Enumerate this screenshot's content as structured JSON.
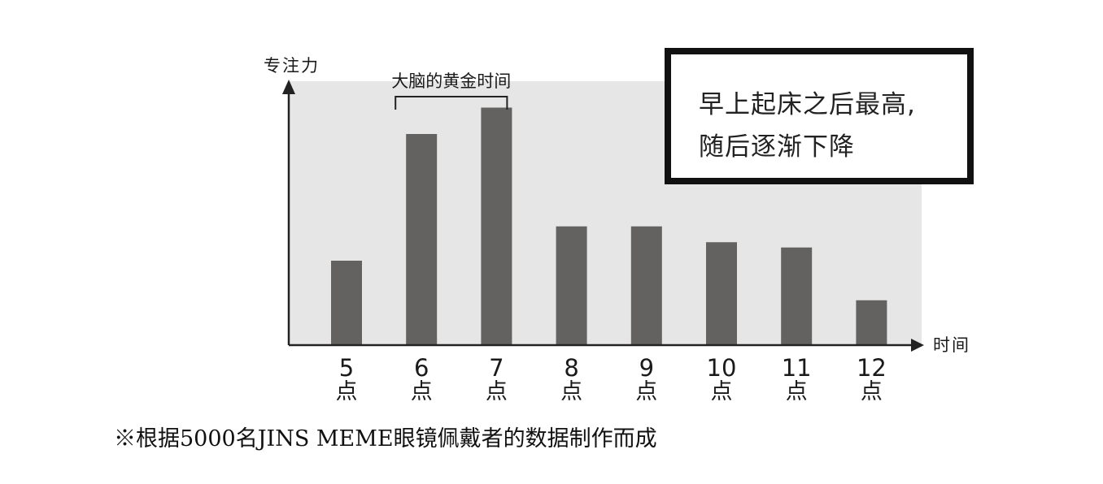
{
  "chart_data": {
    "type": "bar",
    "categories": [
      "5\n点",
      "6\n点",
      "7\n点",
      "8\n点",
      "9\n点",
      "10\n点",
      "11\n点",
      "12\n点"
    ],
    "category_numbers": [
      "5",
      "6",
      "7",
      "8",
      "9",
      "10",
      "11",
      "12"
    ],
    "category_unit": "点",
    "values": [
      32,
      80,
      90,
      45,
      45,
      39,
      37,
      17
    ],
    "ylim": [
      0,
      100
    ],
    "ylabel": "专注力",
    "xlabel": "时间",
    "grid": false,
    "bar_color": "#636261",
    "plot_background": "#e6e6e6",
    "bracket_annotation": {
      "text": "大脑的黄金时间",
      "from_category": "6\n点",
      "to_category": "7\n点"
    },
    "callout": {
      "line1": "早上起床之后最高,",
      "line2": "随后逐渐下降"
    }
  },
  "footnote": "※根据5000名JINS MEME眼镜佩戴者的数据制作而成"
}
